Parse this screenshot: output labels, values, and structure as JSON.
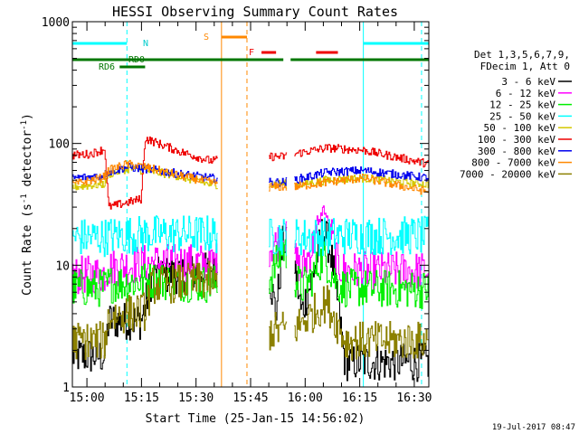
{
  "chart_data": {
    "type": "line",
    "title": "HESSI Observing Summary Count Rates",
    "xlabel": "Start Time (25-Jan-15 14:56:02)",
    "ylabel_main": "Count Rate (s",
    "ylabel_mid": " detector",
    "ylabel_end": ")",
    "ylabel_sup": "-1",
    "y_scale": "log",
    "ylim": [
      1,
      1000
    ],
    "xlim_minutes": [
      0,
      98
    ],
    "x_origin": "14:56:02",
    "y_ticks": [
      {
        "value": 1,
        "label": "1"
      },
      {
        "value": 10,
        "label": "10"
      },
      {
        "value": 100,
        "label": "100"
      },
      {
        "value": 1000,
        "label": "1000"
      }
    ],
    "x_ticks": [
      {
        "t": 4,
        "label": "15:00"
      },
      {
        "t": 19,
        "label": "15:15"
      },
      {
        "t": 34,
        "label": "15:30"
      },
      {
        "t": 49,
        "label": "15:45"
      },
      {
        "t": 64,
        "label": "16:00"
      },
      {
        "t": 79,
        "label": "16:15"
      },
      {
        "t": 94,
        "label": "16:30"
      }
    ],
    "legend_header": [
      "Det 1,3,5,6,7,9,",
      "FDecim 1, Att 0"
    ],
    "legend_placement": "right",
    "footer_date": "19-Jul-2017 08:47",
    "data_segments": [
      [
        0,
        40
      ],
      [
        54,
        59
      ],
      [
        61,
        98
      ]
    ],
    "series": [
      {
        "name": "3 - 6 keV",
        "color": "#000000",
        "points": [
          [
            0,
            1.8
          ],
          [
            9,
            1.8
          ],
          [
            10,
            3.5
          ],
          [
            19,
            3.5
          ],
          [
            22,
            8
          ],
          [
            38,
            9
          ],
          [
            39,
            9.5
          ],
          [
            54,
            9
          ],
          [
            56,
            4
          ],
          [
            58,
            16
          ],
          [
            61,
            11
          ],
          [
            63,
            4
          ],
          [
            66,
            8
          ],
          [
            69,
            20
          ],
          [
            71,
            13
          ],
          [
            73,
            5
          ],
          [
            75,
            1.6
          ],
          [
            98,
            1.6
          ]
        ]
      },
      {
        "name": "6 - 12 keV",
        "color": "#ff00ff",
        "points": [
          [
            0,
            8.2
          ],
          [
            9,
            8.5
          ],
          [
            10,
            9.5
          ],
          [
            22,
            10.5
          ],
          [
            38,
            10.5
          ],
          [
            54,
            14
          ],
          [
            56,
            15
          ],
          [
            58,
            18
          ],
          [
            61,
            12
          ],
          [
            63,
            9
          ],
          [
            66,
            14
          ],
          [
            69,
            30
          ],
          [
            71,
            20
          ],
          [
            73,
            10
          ],
          [
            75,
            9
          ],
          [
            98,
            9
          ]
        ]
      },
      {
        "name": "12 - 25 keV",
        "color": "#00ee00",
        "points": [
          [
            0,
            6.5
          ],
          [
            9,
            6.5
          ],
          [
            10,
            7
          ],
          [
            22,
            7.5
          ],
          [
            38,
            7
          ],
          [
            54,
            7.5
          ],
          [
            56,
            10
          ],
          [
            58,
            14
          ],
          [
            61,
            8
          ],
          [
            63,
            6.5
          ],
          [
            66,
            8
          ],
          [
            69,
            12
          ],
          [
            71,
            9
          ],
          [
            73,
            7
          ],
          [
            75,
            6.5
          ],
          [
            98,
            6.3
          ]
        ]
      },
      {
        "name": "25 - 50 keV",
        "color": "#00ffff",
        "points": [
          [
            0,
            17
          ],
          [
            9,
            17
          ],
          [
            10,
            17.5
          ],
          [
            22,
            18
          ],
          [
            38,
            18
          ],
          [
            54,
            17
          ],
          [
            58,
            17.5
          ],
          [
            61,
            17
          ],
          [
            75,
            17.5
          ],
          [
            98,
            17.5
          ]
        ]
      },
      {
        "name": "50 - 100 keV",
        "color": "#d4c800",
        "points": [
          [
            0,
            44
          ],
          [
            8,
            46
          ],
          [
            9,
            47
          ],
          [
            10,
            56
          ],
          [
            15,
            62
          ],
          [
            20,
            60
          ],
          [
            28,
            55
          ],
          [
            38,
            46
          ],
          [
            54,
            46
          ],
          [
            58,
            47
          ],
          [
            61,
            45
          ],
          [
            70,
            50
          ],
          [
            80,
            52
          ],
          [
            98,
            46
          ]
        ]
      },
      {
        "name": "100 - 300 keV",
        "color": "#ee0000",
        "points": [
          [
            0,
            80
          ],
          [
            5,
            82
          ],
          [
            9,
            90
          ],
          [
            10,
            30
          ],
          [
            19,
            35
          ],
          [
            20,
            110
          ],
          [
            30,
            85
          ],
          [
            38,
            72
          ],
          [
            54,
            78
          ],
          [
            58,
            78
          ],
          [
            61,
            82
          ],
          [
            70,
            92
          ],
          [
            80,
            88
          ],
          [
            98,
            68
          ]
        ]
      },
      {
        "name": "300 - 800 keV",
        "color": "#0000ee",
        "points": [
          [
            0,
            52
          ],
          [
            8,
            54
          ],
          [
            9,
            56
          ],
          [
            10,
            58
          ],
          [
            15,
            64
          ],
          [
            20,
            62
          ],
          [
            30,
            56
          ],
          [
            38,
            52
          ],
          [
            54,
            48
          ],
          [
            58,
            48
          ],
          [
            61,
            50
          ],
          [
            70,
            58
          ],
          [
            80,
            60
          ],
          [
            98,
            52
          ]
        ]
      },
      {
        "name": "800 - 7000 keV",
        "color": "#ff8800",
        "points": [
          [
            0,
            46
          ],
          [
            8,
            52
          ],
          [
            9,
            55
          ],
          [
            10,
            60
          ],
          [
            15,
            68
          ],
          [
            20,
            64
          ],
          [
            30,
            54
          ],
          [
            38,
            48
          ],
          [
            54,
            44
          ],
          [
            58,
            44
          ],
          [
            61,
            44
          ],
          [
            70,
            48
          ],
          [
            80,
            52
          ],
          [
            98,
            40
          ]
        ]
      },
      {
        "name": "7000 - 20000 keV",
        "color": "#8b8000",
        "points": [
          [
            0,
            2.4
          ],
          [
            9,
            2.4
          ],
          [
            10,
            3.8
          ],
          [
            20,
            4.2
          ],
          [
            22,
            6.8
          ],
          [
            38,
            7.5
          ],
          [
            54,
            2.8
          ],
          [
            58,
            3
          ],
          [
            61,
            3
          ],
          [
            70,
            5
          ],
          [
            75,
            2.4
          ],
          [
            98,
            2.4
          ]
        ]
      }
    ],
    "flag_labels": [
      {
        "text": "N",
        "color": "#00cccc"
      },
      {
        "text": "RD0",
        "color": "#007700"
      },
      {
        "text": "RD6",
        "color": "#007700"
      },
      {
        "text": "S",
        "color": "#ff8800"
      },
      {
        "text": "F",
        "color": "#ee0000"
      }
    ],
    "flag_bars": [
      {
        "name": "night",
        "color": "#00ffff",
        "spans": [
          [
            0,
            15
          ],
          [
            80,
            98
          ]
        ]
      },
      {
        "name": "saa",
        "color": "#ff8800",
        "spans": [
          [
            41,
            48
          ]
        ]
      },
      {
        "name": "flare",
        "color": "#ee0000",
        "spans": [
          [
            52,
            56
          ],
          [
            67,
            73
          ]
        ]
      },
      {
        "name": "rd0",
        "color": "#007700",
        "spans": [
          [
            0,
            58
          ],
          [
            60,
            98
          ]
        ]
      },
      {
        "name": "rd6",
        "color": "#007700",
        "spans": [
          [
            13,
            20
          ]
        ]
      }
    ],
    "vertical_markers": [
      {
        "t": 0,
        "color": "#00ffff",
        "dash": false
      },
      {
        "t": 15,
        "color": "#00ffff",
        "dash": true
      },
      {
        "t": 41,
        "color": "#ff8800",
        "dash": false
      },
      {
        "t": 48,
        "color": "#ff8800",
        "dash": true
      },
      {
        "t": 80,
        "color": "#00ffff",
        "dash": false
      },
      {
        "t": 96,
        "color": "#00ffff",
        "dash": true
      }
    ]
  }
}
